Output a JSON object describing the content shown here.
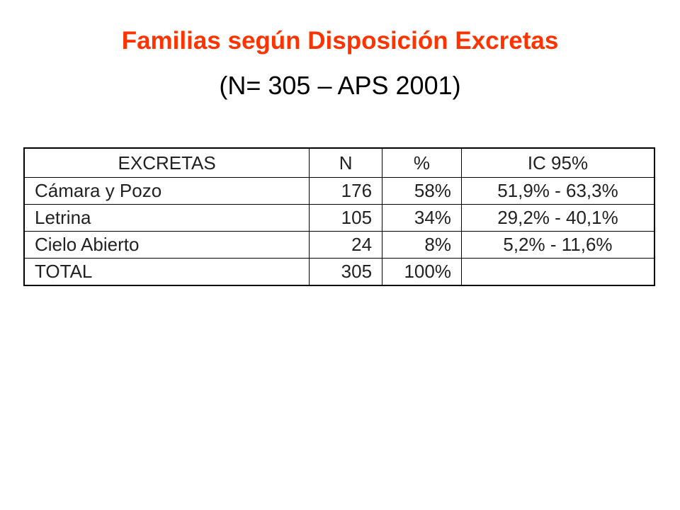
{
  "header": {
    "title": "Familias según Disposición Excretas",
    "subtitle": "(N= 305 – APS 2001)"
  },
  "table": {
    "columns": [
      "EXCRETAS",
      "N",
      "%",
      "IC 95%"
    ],
    "rows": [
      [
        "Cámara y Pozo",
        "176",
        "58%",
        "51,9% - 63,3%"
      ],
      [
        "Letrina",
        "105",
        "34%",
        "29,2% - 40,1%"
      ],
      [
        "Cielo Abierto",
        "24",
        "8%",
        "5,2% - 11,6%"
      ],
      [
        "TOTAL",
        "305",
        "100%"
      ]
    ]
  }
}
